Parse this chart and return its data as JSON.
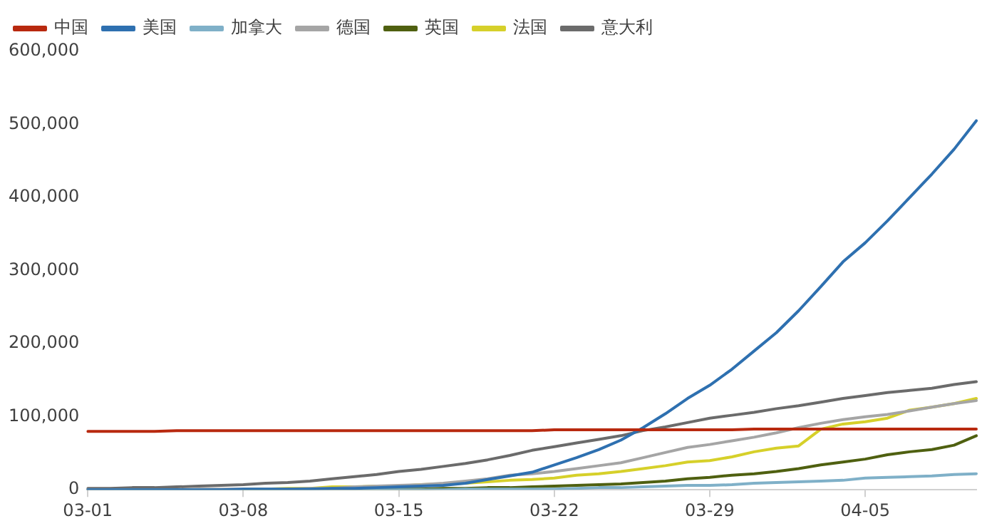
{
  "chart_data": {
    "type": "line",
    "categories": [
      "03-01",
      null,
      null,
      null,
      null,
      null,
      null,
      "03-08",
      null,
      null,
      null,
      null,
      null,
      null,
      "03-15",
      null,
      null,
      null,
      null,
      null,
      null,
      "03-22",
      null,
      null,
      null,
      null,
      null,
      null,
      "03-29",
      null,
      null,
      null,
      null,
      null,
      null,
      "04-05",
      null,
      null,
      null,
      null,
      null
    ],
    "ylim": [
      0,
      600000
    ],
    "yticks": [
      0,
      {
        "value": 100000,
        "label": "100,000"
      },
      {
        "value": 200000,
        "label": "200,000"
      },
      {
        "value": 300000,
        "label": "300,000"
      },
      {
        "value": 400000,
        "label": "400,000"
      },
      {
        "value": 500000,
        "label": "500,000"
      },
      {
        "value": 600000,
        "label": "600,000"
      }
    ],
    "grid": false,
    "legend": "top left",
    "marker": "none",
    "line_style": "solid",
    "series": [
      {
        "name": "中国",
        "color": "#b8290f",
        "values": [
          80000,
          80000,
          80000,
          80000,
          81000,
          81000,
          81000,
          81000,
          81000,
          81000,
          81000,
          81000,
          81000,
          81000,
          81000,
          81000,
          81000,
          81000,
          81000,
          81000,
          81000,
          82000,
          82000,
          82000,
          82000,
          82000,
          82000,
          82000,
          82000,
          82000,
          83000,
          83000,
          83000,
          83000,
          83000,
          83000,
          83000,
          83000,
          83000,
          83000,
          83000
        ]
      },
      {
        "name": "美国",
        "color": "#2e70b0",
        "values": [
          0,
          0,
          0,
          0,
          0,
          0,
          0,
          1000,
          1000,
          1000,
          1000,
          2000,
          2000,
          3000,
          4000,
          5000,
          6000,
          9000,
          14000,
          19000,
          24000,
          34000,
          44000,
          55000,
          68000,
          85000,
          104000,
          125000,
          143000,
          165000,
          190000,
          215000,
          245000,
          278000,
          312000,
          338000,
          368000,
          400000,
          432000,
          466000,
          505000
        ]
      },
      {
        "name": "加拿大",
        "color": "#7fb0c8",
        "values": [
          0,
          0,
          0,
          0,
          0,
          0,
          0,
          0,
          0,
          0,
          0,
          0,
          0,
          0,
          0,
          0,
          0,
          1000,
          1000,
          1000,
          1000,
          1000,
          2000,
          3000,
          3000,
          4000,
          5000,
          6000,
          6000,
          7000,
          9000,
          10000,
          11000,
          12000,
          13000,
          16000,
          17000,
          18000,
          19000,
          21000,
          22000
        ]
      },
      {
        "name": "德国",
        "color": "#a5a5a5",
        "values": [
          0,
          0,
          0,
          0,
          0,
          1000,
          1000,
          1000,
          1000,
          1000,
          2000,
          2000,
          4000,
          5000,
          6000,
          7000,
          9000,
          12000,
          15000,
          20000,
          22000,
          25000,
          29000,
          33000,
          37000,
          44000,
          51000,
          58000,
          62000,
          67000,
          72000,
          78000,
          85000,
          91000,
          96000,
          100000,
          103000,
          108000,
          113000,
          118000,
          122000
        ]
      },
      {
        "name": "英国",
        "color": "#4f6010",
        "values": [
          0,
          0,
          0,
          0,
          0,
          0,
          0,
          0,
          0,
          0,
          0,
          0,
          1000,
          1000,
          1000,
          1000,
          2000,
          2000,
          3000,
          3000,
          4000,
          5000,
          6000,
          7000,
          8000,
          10000,
          12000,
          15000,
          17000,
          20000,
          22000,
          25000,
          29000,
          34000,
          38000,
          42000,
          48000,
          52000,
          55000,
          61000,
          74000
        ]
      },
      {
        "name": "法国",
        "color": "#d6d02a",
        "values": [
          null,
          null,
          null,
          null,
          null,
          null,
          null,
          1000,
          1000,
          2000,
          2000,
          4000,
          4000,
          5000,
          5000,
          7000,
          8000,
          9000,
          11000,
          13000,
          14000,
          16000,
          20000,
          22000,
          25000,
          29000,
          33000,
          38000,
          40000,
          45000,
          52000,
          57000,
          60000,
          83000,
          90000,
          93000,
          98000,
          109000,
          113000,
          118000,
          125000
        ]
      },
      {
        "name": "意大利",
        "color": "#6b6b6b",
        "values": [
          2000,
          2000,
          3000,
          3000,
          4000,
          5000,
          6000,
          7000,
          9000,
          10000,
          12000,
          15000,
          18000,
          21000,
          25000,
          28000,
          32000,
          36000,
          41000,
          47000,
          54000,
          59000,
          64000,
          69000,
          74000,
          81000,
          86000,
          92000,
          98000,
          102000,
          106000,
          111000,
          115000,
          120000,
          125000,
          129000,
          133000,
          136000,
          139000,
          144000,
          148000
        ]
      }
    ]
  }
}
